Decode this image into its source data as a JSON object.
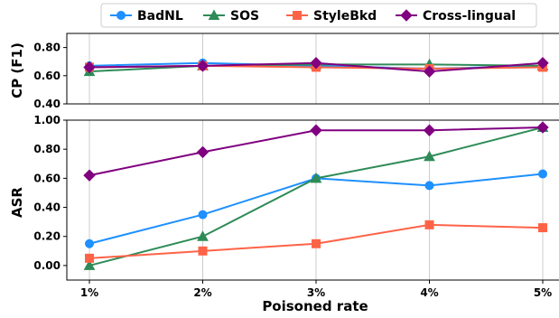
{
  "chart_data": {
    "type": "line",
    "legend": {
      "placement": "top-center",
      "entries": [
        "BadNL",
        "SOS",
        "StyleBkd",
        "Cross-lingual"
      ]
    },
    "categories": [
      "1%",
      "2%",
      "3%",
      "4%",
      "5%"
    ],
    "xlabel": "Poisoned rate",
    "grid": "vertical",
    "series_styles": [
      {
        "name": "BadNL",
        "color": "#1e90ff",
        "marker": "circle"
      },
      {
        "name": "SOS",
        "color": "#2e8b57",
        "marker": "triangle"
      },
      {
        "name": "StyleBkd",
        "color": "#ff6347",
        "marker": "square"
      },
      {
        "name": "Cross-lingual",
        "color": "#800080",
        "marker": "diamond"
      }
    ],
    "panels": [
      {
        "id": "cp",
        "ylabel": "CP (F1)",
        "ylim": [
          0.4,
          0.9
        ],
        "yticks": [
          0.4,
          0.6,
          0.8
        ],
        "ytick_labels": [
          "0.40",
          "0.60",
          "0.80"
        ],
        "series": [
          {
            "name": "BadNL",
            "values": [
              0.67,
              0.69,
              0.67,
              0.65,
              0.67
            ]
          },
          {
            "name": "SOS",
            "values": [
              0.63,
              0.67,
              0.68,
              0.68,
              0.67
            ]
          },
          {
            "name": "StyleBkd",
            "values": [
              0.66,
              0.67,
              0.66,
              0.65,
              0.66
            ]
          },
          {
            "name": "Cross-lingual",
            "values": [
              0.66,
              0.67,
              0.69,
              0.63,
              0.69
            ]
          }
        ]
      },
      {
        "id": "asr",
        "ylabel": "ASR",
        "ylim": [
          -0.1,
          1.0
        ],
        "yticks": [
          0.0,
          0.2,
          0.4,
          0.6,
          0.8,
          1.0
        ],
        "ytick_labels": [
          "0.00",
          "0.20",
          "0.40",
          "0.60",
          "0.80",
          "1.00"
        ],
        "series": [
          {
            "name": "BadNL",
            "values": [
              0.15,
              0.35,
              0.6,
              0.55,
              0.63
            ]
          },
          {
            "name": "SOS",
            "values": [
              0.0,
              0.2,
              0.6,
              0.75,
              0.95
            ]
          },
          {
            "name": "StyleBkd",
            "values": [
              0.05,
              0.1,
              0.15,
              0.28,
              0.26
            ]
          },
          {
            "name": "Cross-lingual",
            "values": [
              0.62,
              0.78,
              0.93,
              0.93,
              0.95
            ]
          }
        ]
      }
    ]
  }
}
